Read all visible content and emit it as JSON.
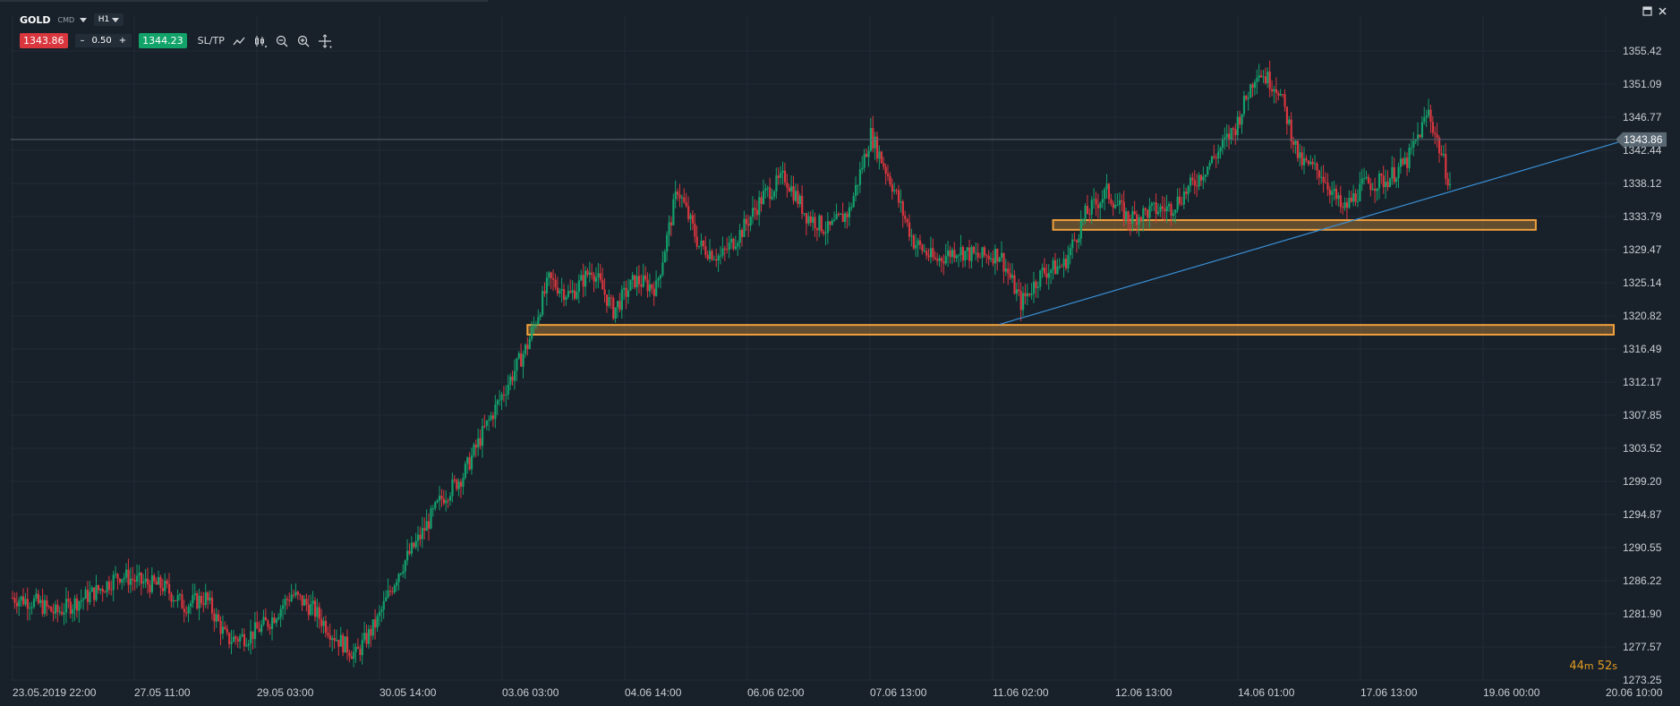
{
  "header": {
    "symbol": "GOLD",
    "instrument_type": "CMD",
    "timeframe": "H1",
    "sell_price": "1343.86",
    "lot_minus": "–",
    "lot_value": "0.50",
    "lot_plus": "+",
    "buy_price": "1344.23",
    "sltp_label": "SL/TP",
    "icons": [
      "line-chart-icon",
      "candle-type-icon",
      "zoom-out-icon",
      "zoom-in-icon",
      "crosshair-icon"
    ]
  },
  "window_controls": {
    "icons": [
      "maximize-icon",
      "close-icon"
    ]
  },
  "countdown": {
    "minutes": "44",
    "minutes_unit": "m",
    "seconds": "52",
    "seconds_unit": "s"
  },
  "chart_data": {
    "type": "candlestick",
    "title": "",
    "xlabel": "",
    "ylabel": "",
    "ylim": [
      1273.25,
      1357.5
    ],
    "current_price": "1343.86",
    "y_ticks": [
      "1355.42",
      "1351.09",
      "1346.77",
      "1342.44",
      "1338.12",
      "1333.79",
      "1329.47",
      "1325.14",
      "1320.82",
      "1316.49",
      "1312.17",
      "1307.85",
      "1303.52",
      "1299.20",
      "1294.87",
      "1290.55",
      "1286.22",
      "1281.90",
      "1277.57",
      "1273.25"
    ],
    "x_ticks": [
      "23.05.2019 22:00",
      "27.05 11:00",
      "29.05 03:00",
      "30.05 14:00",
      "03.06 03:00",
      "04.06 14:00",
      "06.06 02:00",
      "07.06 13:00",
      "11.06 02:00",
      "12.06 13:00",
      "14.06 01:00",
      "17.06 13:00",
      "19.06 00:00",
      "20.06 10:00"
    ],
    "price_path": [
      [
        0,
        1284.0
      ],
      [
        10,
        1283.5
      ],
      [
        20,
        1282.0
      ],
      [
        30,
        1283.5
      ],
      [
        40,
        1285.0
      ],
      [
        50,
        1287.0
      ],
      [
        60,
        1286.0
      ],
      [
        70,
        1285.5
      ],
      [
        80,
        1283.0
      ],
      [
        90,
        1284.0
      ],
      [
        100,
        1278.5
      ],
      [
        110,
        1279.0
      ],
      [
        120,
        1281.0
      ],
      [
        130,
        1284.5
      ],
      [
        140,
        1282.5
      ],
      [
        150,
        1279.0
      ],
      [
        160,
        1276.5
      ],
      [
        170,
        1281.0
      ],
      [
        180,
        1287.5
      ],
      [
        190,
        1292.0
      ],
      [
        200,
        1297.0
      ],
      [
        210,
        1300.0
      ],
      [
        220,
        1306.0
      ],
      [
        230,
        1311.5
      ],
      [
        240,
        1317.0
      ],
      [
        250,
        1325.5
      ],
      [
        260,
        1323.5
      ],
      [
        270,
        1327.0
      ],
      [
        280,
        1321.5
      ],
      [
        290,
        1325.5
      ],
      [
        300,
        1324.5
      ],
      [
        310,
        1337.5
      ],
      [
        320,
        1330.0
      ],
      [
        330,
        1328.5
      ],
      [
        340,
        1332.0
      ],
      [
        350,
        1336.5
      ],
      [
        360,
        1339.0
      ],
      [
        370,
        1334.0
      ],
      [
        380,
        1332.0
      ],
      [
        390,
        1334.5
      ],
      [
        400,
        1344.5
      ],
      [
        410,
        1338.0
      ],
      [
        420,
        1330.5
      ],
      [
        430,
        1328.0
      ],
      [
        440,
        1329.5
      ],
      [
        450,
        1328.5
      ],
      [
        460,
        1329.0
      ],
      [
        470,
        1322.5
      ],
      [
        480,
        1326.5
      ],
      [
        490,
        1327.5
      ],
      [
        500,
        1334.0
      ],
      [
        510,
        1337.0
      ],
      [
        520,
        1333.5
      ],
      [
        530,
        1334.5
      ],
      [
        540,
        1335.0
      ],
      [
        550,
        1338.0
      ],
      [
        560,
        1341.5
      ],
      [
        570,
        1345.5
      ],
      [
        580,
        1353.0
      ],
      [
        590,
        1350.5
      ],
      [
        600,
        1341.0
      ],
      [
        610,
        1339.5
      ],
      [
        620,
        1334.5
      ],
      [
        630,
        1338.0
      ],
      [
        640,
        1338.5
      ],
      [
        650,
        1341.0
      ],
      [
        660,
        1347.5
      ],
      [
        670,
        1338.0
      ]
    ],
    "horizontal_zones": [
      {
        "price_top": 1319.4,
        "price_bottom": 1318.6,
        "from": 240,
        "to": "end",
        "color": "#f0a03c"
      },
      {
        "price_top": 1333.1,
        "price_bottom": 1332.3,
        "from": 485,
        "to": 710,
        "color": "#f0a03c"
      }
    ],
    "trendline": {
      "from_price": 1319.7,
      "from_idx": 460,
      "to_price": 1343.5,
      "to_idx": 720,
      "color": "#3a8fd6"
    },
    "colors": {
      "up": "#13a06c",
      "down": "#d9363e",
      "wick": "#8a96a0",
      "background": "#18212a",
      "grid": "#222c35"
    }
  }
}
